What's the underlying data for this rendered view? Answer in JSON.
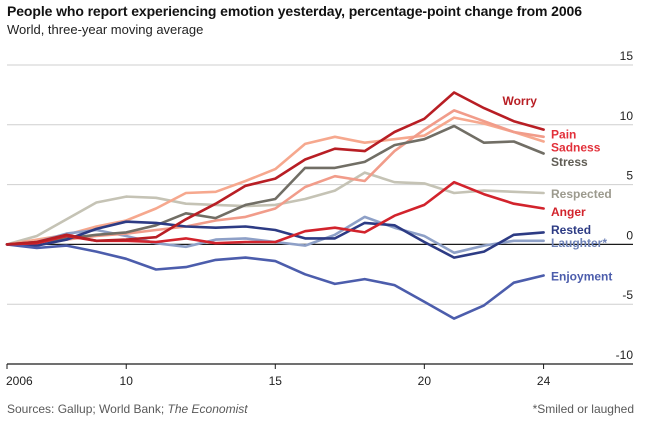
{
  "chart_data": {
    "type": "line",
    "title": "People who report experiencing emotion yesterday, percentage-point change from 2006",
    "subtitle": "World, three-year moving average",
    "x": [
      2006,
      2007,
      2008,
      2009,
      2010,
      2011,
      2012,
      2013,
      2014,
      2015,
      2016,
      2017,
      2018,
      2019,
      2020,
      2021,
      2022,
      2023,
      2024
    ],
    "xticks": [
      2006,
      2010,
      2015,
      2020,
      2024
    ],
    "xtick_labels": [
      "2006",
      "10",
      "15",
      "20",
      "24"
    ],
    "xlim": [
      2006,
      2027
    ],
    "ylim": [
      -10,
      15
    ],
    "yticks": [
      -10,
      -5,
      0,
      5,
      10,
      15
    ],
    "ytick_labels": [
      "-10",
      "-5",
      "0",
      "5",
      "10",
      "15"
    ],
    "grid": true,
    "series": [
      {
        "name": "Respected",
        "label": "Respected",
        "color": "#c5c3b5",
        "values": [
          0,
          0.7,
          2.1,
          3.5,
          4.0,
          3.9,
          3.4,
          3.3,
          3.2,
          3.3,
          3.8,
          4.5,
          6.0,
          5.2,
          5.1,
          4.3,
          4.5,
          4.4,
          4.3
        ]
      },
      {
        "name": "Sadness",
        "label": "Sadness",
        "color": "#f6a88e",
        "values": [
          0,
          0.4,
          0.8,
          1.5,
          2.0,
          3.0,
          4.3,
          4.4,
          5.3,
          6.3,
          8.4,
          9.0,
          8.5,
          8.8,
          9.1,
          10.6,
          10.1,
          9.4,
          8.6
        ]
      },
      {
        "name": "Laughter",
        "label": "Laughter*",
        "color": "#8ea0c7",
        "values": [
          0,
          0.2,
          0.9,
          1.2,
          0.7,
          0.1,
          -0.2,
          0.4,
          0.5,
          0.2,
          -0.1,
          0.8,
          2.3,
          1.4,
          0.7,
          -0.7,
          -0.1,
          0.3,
          0.3
        ]
      },
      {
        "name": "Pain",
        "label": "Pain",
        "color": "#f19c8a",
        "values": [
          0,
          0.1,
          0.4,
          0.7,
          0.9,
          1.2,
          1.5,
          2.0,
          2.3,
          3.0,
          4.8,
          5.7,
          5.3,
          7.8,
          9.6,
          11.2,
          10.3,
          9.4,
          9.0
        ]
      },
      {
        "name": "Stress",
        "label": "Stress",
        "color": "#716e65",
        "values": [
          0,
          0.2,
          0.5,
          0.8,
          1.0,
          1.6,
          2.6,
          2.2,
          3.3,
          3.8,
          6.4,
          6.4,
          6.9,
          8.3,
          8.8,
          9.9,
          8.5,
          8.6,
          7.6
        ]
      },
      {
        "name": "Rested",
        "label": "Rested",
        "color": "#2d3b84",
        "values": [
          0,
          -0.1,
          0.4,
          1.3,
          1.9,
          1.8,
          1.5,
          1.4,
          1.5,
          1.2,
          0.5,
          0.5,
          1.8,
          1.6,
          0.2,
          -1.1,
          -0.6,
          0.8,
          1.0
        ]
      },
      {
        "name": "Enjoyment",
        "label": "Enjoyment",
        "color": "#4c5dac",
        "values": [
          0,
          -0.3,
          -0.1,
          -0.6,
          -1.2,
          -2.1,
          -1.9,
          -1.3,
          -1.1,
          -1.4,
          -2.5,
          -3.3,
          -2.9,
          -3.4,
          -4.8,
          -6.2,
          -5.1,
          -3.2,
          -2.6
        ]
      },
      {
        "name": "Anger",
        "label": "Anger",
        "color": "#d2232c",
        "values": [
          0,
          0.1,
          0.7,
          0.3,
          0.3,
          0.2,
          0.5,
          0.1,
          0.2,
          0.2,
          1.1,
          1.4,
          1.0,
          2.4,
          3.3,
          5.2,
          4.2,
          3.4,
          3.0
        ]
      },
      {
        "name": "Worry",
        "label": "Worry",
        "color": "#b81e24",
        "values": [
          0,
          0.2,
          0.8,
          0.3,
          0.4,
          0.6,
          2.1,
          3.4,
          4.9,
          5.5,
          7.1,
          8.0,
          7.8,
          9.4,
          10.5,
          12.7,
          11.4,
          10.3,
          9.6
        ]
      }
    ],
    "labels": [
      {
        "series": "Worry",
        "text": "Worry",
        "color": "#b81e24",
        "y": 12.0,
        "x": 2023.2,
        "anchor": "middle"
      },
      {
        "series": "Pain",
        "text": "Pain",
        "color": "#e2303a",
        "y": 9.2,
        "x": 2024.25,
        "anchor": "start"
      },
      {
        "series": "Sadness",
        "text": "Sadness",
        "color": "#e2303a",
        "y": 8.1,
        "x": 2024.25,
        "anchor": "start"
      },
      {
        "series": "Stress",
        "text": "Stress",
        "color": "#5f5c54",
        "y": 6.9,
        "x": 2024.25,
        "anchor": "start"
      },
      {
        "series": "Respected",
        "text": "Respected",
        "color": "#9c9a8e",
        "y": 4.2,
        "x": 2024.25,
        "anchor": "start"
      },
      {
        "series": "Anger",
        "text": "Anger",
        "color": "#d2232c",
        "y": 2.7,
        "x": 2024.25,
        "anchor": "start"
      },
      {
        "series": "Rested",
        "text": "Rested",
        "color": "#2d3b84",
        "y": 1.2,
        "x": 2024.25,
        "anchor": "start"
      },
      {
        "series": "Laughter",
        "text": "Laughter*",
        "color": "#6f83b8",
        "y": 0.1,
        "x": 2024.25,
        "anchor": "start"
      },
      {
        "series": "Enjoyment",
        "text": "Enjoyment",
        "color": "#4c5dac",
        "y": -2.7,
        "x": 2024.25,
        "anchor": "start"
      }
    ]
  },
  "footer": {
    "sources_prefix": "Sources: Gallup; World Bank; ",
    "sources_publication": "The Economist",
    "note": "*Smiled or laughed"
  }
}
